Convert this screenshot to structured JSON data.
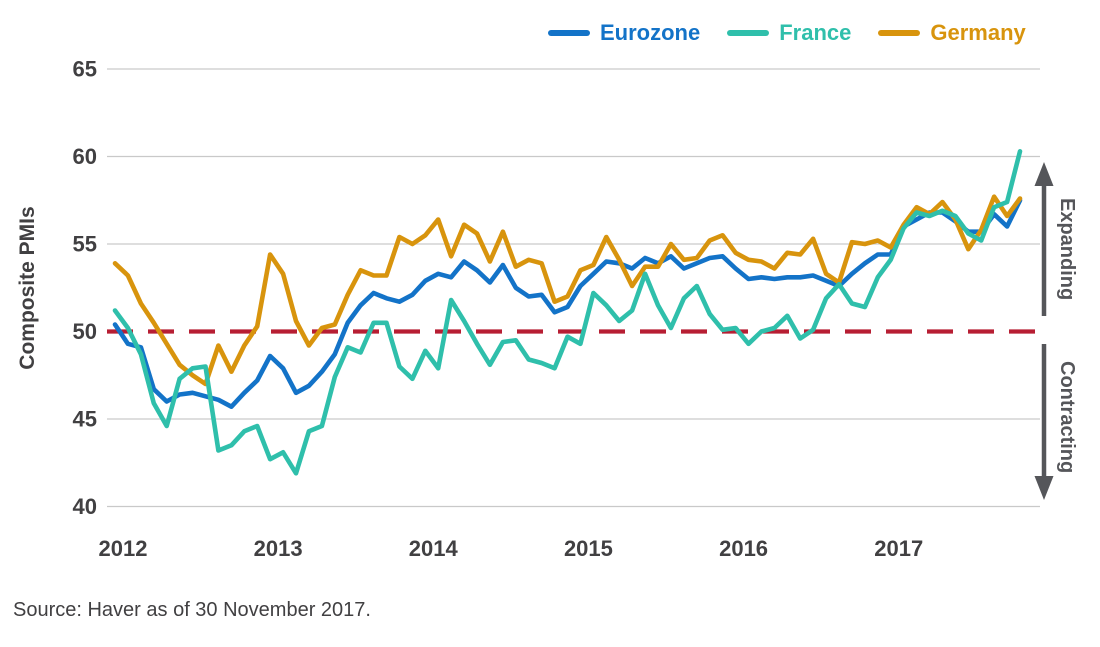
{
  "legend": {
    "items": [
      {
        "label": "Eurozone",
        "color": "#1373C8"
      },
      {
        "label": "France",
        "color": "#2FBFAB"
      },
      {
        "label": "Germany",
        "color": "#D8940D"
      }
    ]
  },
  "y_axis_title": "Composite PMIs",
  "annotations": {
    "expanding": "Expanding",
    "contracting": "Contracting"
  },
  "source": "Source: Haver as of 30 November 2017.",
  "colors": {
    "eurozone": "#1373C8",
    "france": "#2FBFAB",
    "germany": "#D8940D",
    "reference_red": "#B71E33",
    "gridline": "#C9C9C9",
    "text": "#414042",
    "arrow": "#55565A"
  },
  "chart_data": {
    "type": "line",
    "title": "",
    "xlabel": "",
    "ylabel": "Composite PMIs",
    "ylim": [
      40,
      65
    ],
    "yticks": [
      40,
      45,
      50,
      55,
      60,
      65
    ],
    "xticklabels": [
      "2012",
      "2013",
      "2014",
      "2015",
      "2016",
      "2017"
    ],
    "x_range": "Monthly, January 2012 to November 2017",
    "grid": "horizontal",
    "legend_position": "top",
    "reference_line": {
      "value": 50,
      "style": "dashed",
      "color": "#B71E33",
      "meaning": "Expansion/contraction threshold"
    },
    "series": [
      {
        "name": "Eurozone",
        "color": "#1373C8",
        "values": [
          50.4,
          49.3,
          49.1,
          46.7,
          46.0,
          46.4,
          46.5,
          46.3,
          46.1,
          45.7,
          46.5,
          47.2,
          48.6,
          47.9,
          46.5,
          46.9,
          47.7,
          48.7,
          50.5,
          51.5,
          52.2,
          51.9,
          51.7,
          52.1,
          52.9,
          53.3,
          53.1,
          54.0,
          53.5,
          52.8,
          53.8,
          52.5,
          52.0,
          52.1,
          51.1,
          51.4,
          52.6,
          53.3,
          54.0,
          53.9,
          53.6,
          54.2,
          53.9,
          54.3,
          53.6,
          53.9,
          54.2,
          54.3,
          53.6,
          53.0,
          53.1,
          53.0,
          53.1,
          53.1,
          53.2,
          52.9,
          52.6,
          53.3,
          53.9,
          54.4,
          54.4,
          56.0,
          56.4,
          56.8,
          56.8,
          56.3,
          55.7,
          55.7,
          56.7,
          56.0,
          57.5
        ]
      },
      {
        "name": "France",
        "color": "#2FBFAB",
        "values": [
          51.2,
          50.2,
          48.7,
          45.9,
          44.6,
          47.3,
          47.9,
          48.0,
          43.2,
          43.5,
          44.3,
          44.6,
          42.7,
          43.1,
          41.9,
          44.3,
          44.6,
          47.4,
          49.1,
          48.8,
          50.5,
          50.5,
          48.0,
          47.3,
          48.9,
          47.9,
          51.8,
          50.6,
          49.3,
          48.1,
          49.4,
          49.5,
          48.4,
          48.2,
          47.9,
          49.7,
          49.3,
          52.2,
          51.5,
          50.6,
          51.2,
          53.3,
          51.5,
          50.2,
          51.9,
          52.6,
          51.0,
          50.1,
          50.2,
          49.3,
          50.0,
          50.2,
          50.9,
          49.6,
          50.1,
          51.9,
          52.7,
          51.6,
          51.4,
          53.1,
          54.1,
          55.9,
          56.8,
          56.6,
          56.9,
          56.6,
          55.6,
          55.2,
          57.1,
          57.4,
          60.3
        ]
      },
      {
        "name": "Germany",
        "color": "#D8940D",
        "values": [
          53.9,
          53.2,
          51.6,
          50.5,
          49.3,
          48.1,
          47.5,
          47.0,
          49.2,
          47.7,
          49.2,
          50.3,
          54.4,
          53.3,
          50.6,
          49.2,
          50.2,
          50.4,
          52.1,
          53.5,
          53.2,
          53.2,
          55.4,
          55.0,
          55.5,
          56.4,
          54.3,
          56.1,
          55.6,
          54.0,
          55.7,
          53.7,
          54.1,
          53.9,
          51.7,
          52.0,
          53.5,
          53.8,
          55.4,
          54.1,
          52.6,
          53.7,
          53.7,
          55.0,
          54.1,
          54.2,
          55.2,
          55.5,
          54.5,
          54.1,
          54.0,
          53.6,
          54.5,
          54.4,
          55.3,
          53.3,
          52.8,
          55.1,
          55.0,
          55.2,
          54.8,
          56.1,
          57.1,
          56.7,
          57.4,
          56.4,
          54.7,
          55.8,
          57.7,
          56.6,
          57.6
        ]
      }
    ]
  }
}
